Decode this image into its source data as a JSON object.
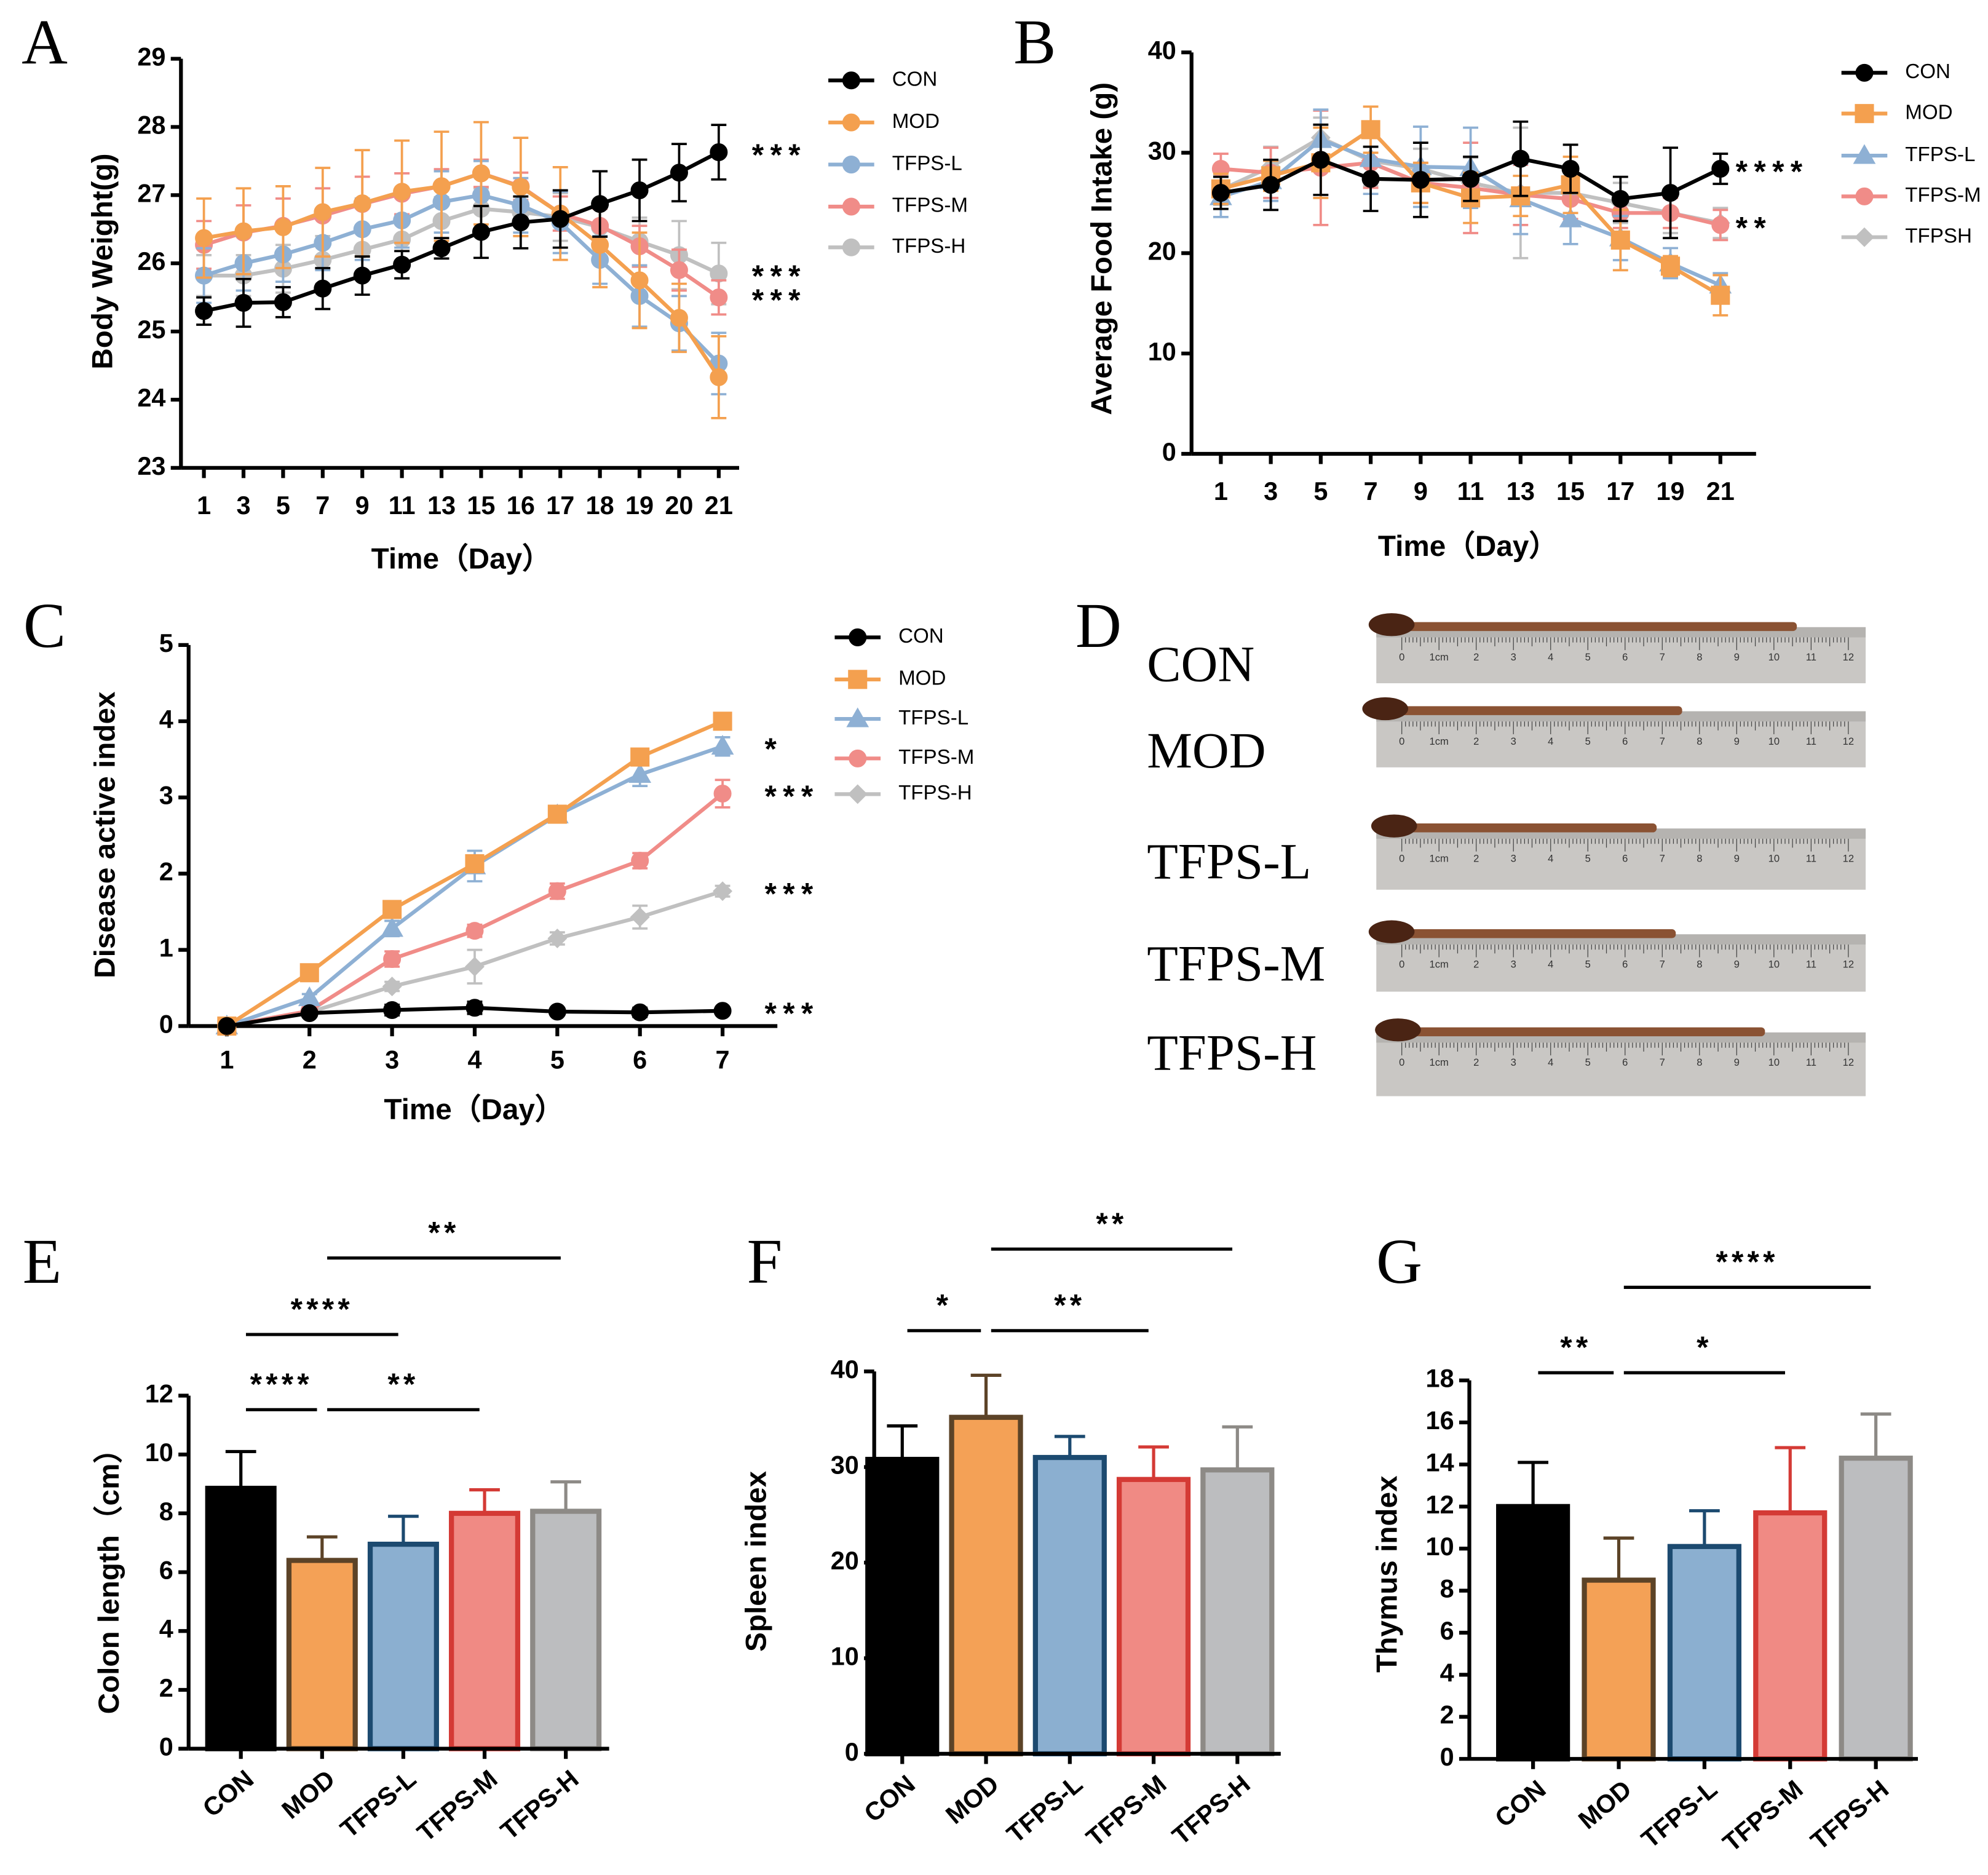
{
  "chart_data": [
    {
      "type": "line",
      "panel": "A",
      "xlabel": "Time（Day）",
      "ylabel": "Body Weight(g)",
      "categories": [
        "1",
        "3",
        "5",
        "7",
        "9",
        "11",
        "13",
        "15",
        "16",
        "17",
        "18",
        "19",
        "20",
        "21"
      ],
      "ylim": [
        23,
        29
      ],
      "yticks": [
        23,
        24,
        25,
        26,
        27,
        28,
        29
      ],
      "series": [
        {
          "name": "CON",
          "color": "#000000",
          "marker": "circle",
          "values": [
            25.3,
            25.42,
            25.43,
            25.63,
            25.82,
            25.98,
            26.22,
            26.46,
            26.6,
            26.65,
            26.87,
            27.07,
            27.33,
            27.63
          ],
          "errors": [
            0.2,
            0.35,
            0.22,
            0.3,
            0.28,
            0.2,
            0.15,
            0.38,
            0.38,
            0.42,
            0.48,
            0.45,
            0.42,
            0.4
          ]
        },
        {
          "name": "MOD",
          "color": "#f4a04f",
          "marker": "circle",
          "values": [
            26.37,
            26.47,
            26.53,
            26.75,
            26.88,
            27.05,
            27.13,
            27.32,
            27.12,
            26.73,
            26.27,
            25.75,
            25.2,
            24.33
          ],
          "errors": [
            0.58,
            0.63,
            0.6,
            0.65,
            0.78,
            0.75,
            0.8,
            0.75,
            0.72,
            0.68,
            0.62,
            0.7,
            0.5,
            0.6
          ]
        },
        {
          "name": "TFPS-L",
          "color": "#8eb0d4",
          "marker": "circle",
          "values": [
            25.82,
            26.0,
            26.13,
            26.3,
            26.5,
            26.63,
            26.9,
            27.0,
            26.85,
            26.6,
            26.05,
            25.52,
            25.12,
            24.53
          ],
          "errors": [
            0.4,
            0.4,
            0.4,
            0.4,
            0.45,
            0.4,
            0.45,
            0.5,
            0.4,
            0.45,
            0.35,
            0.45,
            0.4,
            0.45
          ]
        },
        {
          "name": "TFPS-M",
          "color": "#f08c88",
          "marker": "circle",
          "values": [
            26.27,
            26.45,
            26.55,
            26.7,
            26.87,
            27.02,
            27.13,
            27.32,
            27.13,
            26.73,
            26.55,
            26.25,
            25.9,
            25.5
          ],
          "errors": [
            0.35,
            0.4,
            0.4,
            0.4,
            0.4,
            0.3,
            0.25,
            0.2,
            0.2,
            0.25,
            0.25,
            0.3,
            0.3,
            0.25
          ]
        },
        {
          "name": "TFPS-H",
          "color": "#c0c0c0",
          "marker": "circle",
          "values": [
            25.82,
            25.82,
            25.92,
            26.05,
            26.2,
            26.35,
            26.62,
            26.8,
            26.75,
            26.68,
            26.53,
            26.32,
            26.12,
            25.85
          ],
          "errors": [
            0.3,
            0.3,
            0.35,
            0.35,
            0.35,
            0.35,
            0.35,
            0.3,
            0.35,
            0.35,
            0.35,
            0.35,
            0.5,
            0.45
          ]
        }
      ],
      "annotations": [
        {
          "text": "***",
          "series": "CON"
        },
        {
          "text": "***",
          "series": "TFPS-H"
        },
        {
          "text": "***",
          "series": "TFPS-M"
        }
      ]
    },
    {
      "type": "line",
      "panel": "B",
      "xlabel": "Time（Day）",
      "ylabel": "Average Food Intake (g)",
      "categories": [
        "1",
        "3",
        "5",
        "7",
        "9",
        "11",
        "13",
        "15",
        "17",
        "19",
        "21"
      ],
      "ylim": [
        0,
        40
      ],
      "yticks": [
        0,
        10,
        20,
        30,
        40
      ],
      "series": [
        {
          "name": "CON",
          "color": "#000000",
          "marker": "circle",
          "values": [
            26,
            26.8,
            29.3,
            27.4,
            27.3,
            27.4,
            29.4,
            28.4,
            25.4,
            26,
            28.4
          ],
          "errors": [
            1.6,
            2.5,
            3.5,
            3.2,
            3.7,
            2.2,
            3.7,
            2.4,
            2.2,
            4.5,
            1.5
          ]
        },
        {
          "name": "MOD",
          "color": "#f4a04f",
          "marker": "square",
          "values": [
            26.4,
            27.7,
            29,
            32.3,
            27,
            25.5,
            25.7,
            26.8,
            21.3,
            18.7,
            15.8
          ],
          "errors": [
            1.5,
            1.5,
            3.5,
            2.3,
            2,
            2.5,
            2,
            2.8,
            3,
            1,
            2
          ]
        },
        {
          "name": "TFPS-L",
          "color": "#8eb0d4",
          "marker": "triangle",
          "values": [
            25.6,
            27.2,
            31.3,
            29.4,
            28.6,
            28.5,
            25.4,
            23.4,
            21.5,
            19,
            16.8
          ],
          "errors": [
            2,
            2,
            3,
            3.5,
            4,
            4,
            3.5,
            2.5,
            2.2,
            1.5,
            1.2
          ]
        },
        {
          "name": "TFPS-M",
          "color": "#f08c88",
          "marker": "circle",
          "values": [
            28.4,
            28,
            28.5,
            29,
            27,
            26.5,
            25.8,
            25.4,
            24,
            24,
            22.8
          ],
          "errors": [
            1.5,
            2.5,
            5.7,
            2.5,
            2,
            4.5,
            3,
            2,
            1.5,
            1.5,
            1.5
          ]
        },
        {
          "name": "TFPSH",
          "color": "#c0c0c0",
          "marker": "diamond",
          "values": [
            26.3,
            28.6,
            31.5,
            29.2,
            28.4,
            27,
            26,
            26,
            25,
            24,
            23
          ],
          "errors": [
            1.5,
            2,
            2,
            2.5,
            2,
            2.5,
            6.5,
            2,
            2,
            2,
            1.5
          ]
        }
      ],
      "annotations": [
        {
          "text": "****",
          "series": "CON"
        },
        {
          "text": "**",
          "series": "TFPS-M"
        }
      ]
    },
    {
      "type": "line",
      "panel": "C",
      "xlabel": "Time（Day）",
      "ylabel": "Disease active index",
      "categories": [
        "1",
        "2",
        "3",
        "4",
        "5",
        "6",
        "7"
      ],
      "ylim": [
        0,
        5
      ],
      "yticks": [
        0,
        1,
        2,
        3,
        4,
        5
      ],
      "series": [
        {
          "name": "CON",
          "color": "#000000",
          "marker": "circle",
          "values": [
            0,
            0.17,
            0.21,
            0.24,
            0.19,
            0.18,
            0.2
          ],
          "errors": [
            0.02,
            0.04,
            0.07,
            0.08,
            0.04,
            0.06,
            0.04
          ]
        },
        {
          "name": "MOD",
          "color": "#f4a04f",
          "marker": "square",
          "values": [
            0,
            0.7,
            1.53,
            2.13,
            2.78,
            3.53,
            4.0
          ],
          "errors": [
            0.02,
            0.08,
            0.08,
            0.1,
            0.08,
            0.1,
            0.05
          ]
        },
        {
          "name": "TFPS-L",
          "color": "#8eb0d4",
          "marker": "triangle",
          "values": [
            0,
            0.37,
            1.28,
            2.1,
            2.77,
            3.3,
            3.67
          ],
          "errors": [
            0.02,
            0.05,
            0.1,
            0.2,
            0.08,
            0.15,
            0.12
          ]
        },
        {
          "name": "TFPS-M",
          "color": "#f08c88",
          "marker": "circle",
          "values": [
            0,
            0.2,
            0.88,
            1.25,
            1.77,
            2.17,
            3.05
          ],
          "errors": [
            0.02,
            0.04,
            0.1,
            0.08,
            0.1,
            0.1,
            0.18
          ]
        },
        {
          "name": "TFPS-H",
          "color": "#c0c0c0",
          "marker": "diamond",
          "values": [
            0,
            0.18,
            0.52,
            0.78,
            1.15,
            1.43,
            1.77
          ],
          "errors": [
            0.02,
            0.03,
            0.06,
            0.22,
            0.08,
            0.15,
            0.07
          ]
        }
      ],
      "annotations": [
        {
          "text": "*",
          "series": "TFPS-L"
        },
        {
          "text": "***",
          "series": "TFPS-M"
        },
        {
          "text": "***",
          "series": "TFPS-H"
        },
        {
          "text": "***",
          "series": "CON"
        }
      ]
    },
    {
      "type": "bar",
      "panel": "E",
      "ylabel": "Colon length（cm）",
      "categories": [
        "CON",
        "MOD",
        "TFPS-L",
        "TFPS-M",
        "TFPS-H"
      ],
      "values": [
        8.85,
        6.4,
        6.95,
        8.0,
        8.07
      ],
      "errors": [
        1.25,
        0.8,
        0.95,
        0.8,
        1.0
      ],
      "colors": [
        "#000000",
        "#f4a156",
        "#8bafd0",
        "#f08a84",
        "#bcbdbf"
      ],
      "edge_colors": [
        "#000000",
        "#5c4327",
        "#1c4a70",
        "#d43a35",
        "#8d8a86"
      ],
      "ylim": [
        0,
        12
      ],
      "yticks": [
        0,
        2,
        4,
        6,
        8,
        10,
        12
      ],
      "comparisons": [
        {
          "label": "**",
          "groups": [
            "MOD",
            "TFPS-H"
          ]
        },
        {
          "label": "****",
          "groups": [
            "CON",
            "TFPS-L"
          ]
        },
        {
          "label": "****",
          "groups": [
            "CON",
            "MOD"
          ]
        },
        {
          "label": "**",
          "groups": [
            "MOD",
            "TFPS-M"
          ]
        }
      ]
    },
    {
      "type": "bar",
      "panel": "F",
      "ylabel": "Spleen index",
      "categories": [
        "CON",
        "MOD",
        "TFPS-L",
        "TFPS-M",
        "TFPS-H"
      ],
      "values": [
        30.8,
        35.2,
        31.0,
        28.7,
        29.7
      ],
      "errors": [
        3.5,
        4.4,
        2.2,
        3.4,
        4.5
      ],
      "colors": [
        "#000000",
        "#f4a156",
        "#8bafd0",
        "#f08a84",
        "#bcbdbf"
      ],
      "edge_colors": [
        "#000000",
        "#5c4327",
        "#1c4a70",
        "#d43a35",
        "#8d8a86"
      ],
      "ylim": [
        0,
        40
      ],
      "yticks": [
        0,
        10,
        20,
        30,
        40
      ],
      "comparisons": [
        {
          "label": "**",
          "groups": [
            "MOD",
            "TFPS-H"
          ]
        },
        {
          "label": "*",
          "groups": [
            "CON",
            "MOD"
          ]
        },
        {
          "label": "**",
          "groups": [
            "MOD",
            "TFPS-M"
          ]
        }
      ]
    },
    {
      "type": "bar",
      "panel": "G",
      "ylabel": "Thymus index",
      "categories": [
        "CON",
        "MOD",
        "TFPS-L",
        "TFPS-M",
        "TFPS-H"
      ],
      "values": [
        12.0,
        8.5,
        10.1,
        11.7,
        14.3
      ],
      "errors": [
        2.1,
        2.0,
        1.7,
        3.1,
        2.1
      ],
      "colors": [
        "#000000",
        "#f4a156",
        "#8bafd0",
        "#f08a84",
        "#bcbdbf"
      ],
      "edge_colors": [
        "#000000",
        "#5c4327",
        "#1c4a70",
        "#d43a35",
        "#8d8a86"
      ],
      "ylim": [
        0,
        18
      ],
      "yticks": [
        0,
        2,
        4,
        6,
        8,
        10,
        12,
        14,
        16,
        18
      ],
      "comparisons": [
        {
          "label": "****",
          "groups": [
            "MOD",
            "TFPS-H"
          ]
        },
        {
          "label": "**",
          "groups": [
            "CON",
            "MOD"
          ]
        },
        {
          "label": "*",
          "groups": [
            "MOD",
            "TFPS-M"
          ]
        }
      ]
    }
  ],
  "photo": {
    "panel": "D",
    "labels": [
      "CON",
      "MOD",
      "TFPS-L",
      "TFPS-M",
      "TFPS-H"
    ],
    "ruler_labels": [
      "0",
      "1cm",
      "2",
      "3",
      "4",
      "5",
      "6",
      "7",
      "8",
      "9",
      "10",
      "11",
      "12"
    ]
  }
}
